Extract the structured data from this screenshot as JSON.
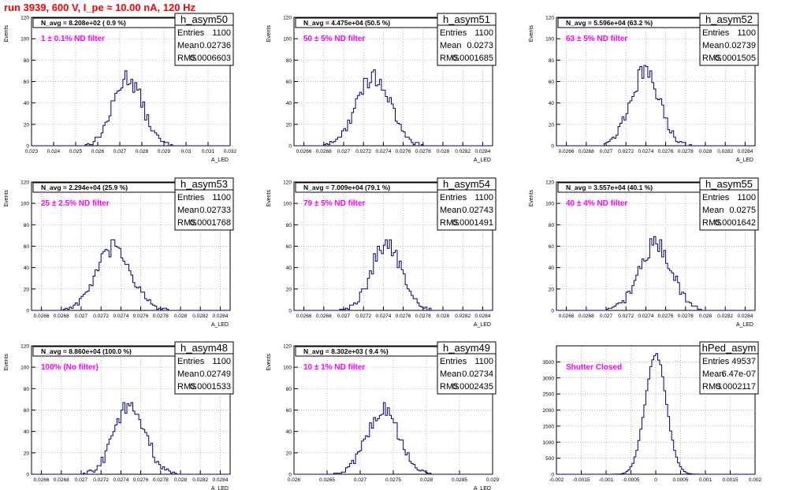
{
  "page_title": "run 3939,   600 V, I_pe ≈ 10.00 nA, 120 Hz",
  "stat_labels": {
    "entries": "Entries",
    "mean": "Mean",
    "rms": "RMS"
  },
  "chart_data": [
    {
      "type": "bar",
      "histogram": "h_asym50",
      "ylabel": "Events",
      "xlabel": "A_LED",
      "x_range": [
        0.023,
        0.032
      ],
      "y_range": [
        0,
        120
      ],
      "x_ticks": [
        "0.023",
        "0.024",
        "0.025",
        "0.026",
        "0.027",
        "0.028",
        "0.029",
        "0.03",
        "0.031",
        "0.032"
      ],
      "y_ticks": [
        "0",
        "20",
        "40",
        "60",
        "80",
        "100",
        "120"
      ],
      "n_avg_text": "N_avg = 8.208e+02 ( 0.9 %)",
      "filter_text": "1 ± 0.1% ND filter",
      "entries": "1100",
      "mean": "0.02736",
      "rms": "0.0006603",
      "mean_value": 0.02736,
      "rms_value": 0.0006603,
      "peak": 64
    },
    {
      "type": "bar",
      "histogram": "h_asym51",
      "ylabel": "Events",
      "xlabel": "A_LED",
      "x_range": [
        0.0265,
        0.0285
      ],
      "y_range": [
        0,
        120
      ],
      "x_ticks": [
        "0.0266",
        "0.0268",
        "0.027",
        "0.0272",
        "0.0274",
        "0.0276",
        "0.0278",
        "0.028",
        "0.0282",
        "0.0284"
      ],
      "y_ticks": [
        "0",
        "20",
        "40",
        "60",
        "80",
        "100",
        "120"
      ],
      "n_avg_text": "N_avg = 4.475e+04 (50.5 %)",
      "filter_text": "50 ± 5% ND filter",
      "entries": "1100",
      "mean": "0.0273",
      "rms": "0.0001685",
      "mean_value": 0.0273,
      "rms_value": 0.0001685,
      "peak": 65
    },
    {
      "type": "bar",
      "histogram": "h_asym52",
      "ylabel": "Events",
      "xlabel": "A_LED",
      "x_range": [
        0.0265,
        0.0285
      ],
      "y_range": [
        0,
        120
      ],
      "x_ticks": [
        "0.0266",
        "0.0268",
        "0.027",
        "0.0272",
        "0.0274",
        "0.0276",
        "0.0278",
        "0.028",
        "0.0282",
        "0.0284"
      ],
      "y_ticks": [
        "0",
        "20",
        "40",
        "60",
        "80",
        "100",
        "120"
      ],
      "n_avg_text": "N_avg = 5.596e+04 (63.2 %)",
      "filter_text": "63 ± 5% ND filter",
      "entries": "1100",
      "mean": "0.02739",
      "rms": "0.0001505",
      "mean_value": 0.02739,
      "rms_value": 0.0001505,
      "peak": 68
    },
    {
      "type": "bar",
      "histogram": "h_asym53",
      "ylabel": "Events",
      "xlabel": "A_LED",
      "x_range": [
        0.0265,
        0.0285
      ],
      "y_range": [
        0,
        120
      ],
      "x_ticks": [
        "0.0266",
        "0.0268",
        "0.027",
        "0.0272",
        "0.0274",
        "0.0276",
        "0.0278",
        "0.028",
        "0.0282",
        "0.0284"
      ],
      "y_ticks": [
        "0",
        "20",
        "40",
        "60",
        "80",
        "100",
        "120"
      ],
      "n_avg_text": "N_avg = 2.294e+04 (25.9 %)",
      "filter_text": "25 ± 2.5% ND filter",
      "entries": "1100",
      "mean": "0.02733",
      "rms": "0.0001768",
      "mean_value": 0.02733,
      "rms_value": 0.0001768,
      "peak": 58
    },
    {
      "type": "bar",
      "histogram": "h_asym54",
      "ylabel": "Events",
      "xlabel": "A_LED",
      "x_range": [
        0.0265,
        0.0285
      ],
      "y_range": [
        0,
        120
      ],
      "x_ticks": [
        "0.0266",
        "0.0268",
        "0.027",
        "0.0272",
        "0.0274",
        "0.0276",
        "0.0278",
        "0.028",
        "0.0282",
        "0.0284"
      ],
      "y_ticks": [
        "0",
        "20",
        "40",
        "60",
        "80",
        "100",
        "120"
      ],
      "n_avg_text": "N_avg = 7.009e+04 (79.1 %)",
      "filter_text": "79 ± 5% ND filter",
      "entries": "1100",
      "mean": "0.02743",
      "rms": "0.0001491",
      "mean_value": 0.02743,
      "rms_value": 0.0001491,
      "peak": 63
    },
    {
      "type": "bar",
      "histogram": "h_asym55",
      "ylabel": "Events",
      "xlabel": "A_LED",
      "x_range": [
        0.0265,
        0.0285
      ],
      "y_range": [
        0,
        120
      ],
      "x_ticks": [
        "0.0266",
        "0.0268",
        "0.027",
        "0.0272",
        "0.0274",
        "0.0276",
        "0.0278",
        "0.028",
        "0.0282",
        "0.0284"
      ],
      "y_ticks": [
        "0",
        "20",
        "40",
        "60",
        "80",
        "100",
        "120"
      ],
      "n_avg_text": "N_avg = 3.557e+04 (40.1 %)",
      "filter_text": "40 ± 4% ND filter",
      "entries": "1100",
      "mean": "0.0275",
      "rms": "0.0001642",
      "mean_value": 0.0275,
      "rms_value": 0.0001642,
      "peak": 62
    },
    {
      "type": "bar",
      "histogram": "h_asym48",
      "ylabel": "Events",
      "xlabel": "A_LED",
      "x_range": [
        0.0265,
        0.0285
      ],
      "y_range": [
        0,
        120
      ],
      "x_ticks": [
        "0.0266",
        "0.0268",
        "0.027",
        "0.0272",
        "0.0274",
        "0.0276",
        "0.0278",
        "0.028",
        "0.0282",
        "0.0284"
      ],
      "y_ticks": [
        "0",
        "20",
        "40",
        "60",
        "80",
        "100",
        "120"
      ],
      "n_avg_text": "N_avg = 8.860e+04 (100.0 %)",
      "filter_text": "100% (No filter)",
      "entries": "1100",
      "mean": "0.02749",
      "rms": "0.0001533",
      "mean_value": 0.02749,
      "rms_value": 0.0001533,
      "peak": 66
    },
    {
      "type": "bar",
      "histogram": "h_asym49",
      "ylabel": "Events",
      "xlabel": "A_LED",
      "x_range": [
        0.026,
        0.029
      ],
      "y_range": [
        0,
        120
      ],
      "x_ticks": [
        "0.026",
        "0.0265",
        "0.027",
        "0.0275",
        "0.028",
        "0.0285",
        "0.029"
      ],
      "y_ticks": [
        "0",
        "20",
        "40",
        "60",
        "80",
        "100",
        "120"
      ],
      "n_avg_text": "N_avg = 8.302e+03 ( 9.4 %)",
      "filter_text": "10 ± 1% ND filter",
      "entries": "1100",
      "mean": "0.02734",
      "rms": "0.0002435",
      "mean_value": 0.02734,
      "rms_value": 0.0002435,
      "peak": 60
    },
    {
      "type": "bar",
      "histogram": "hPed_asym",
      "ylabel": "",
      "xlabel": "",
      "x_range": [
        -0.002,
        0.002
      ],
      "y_range": [
        0,
        4000
      ],
      "x_ticks": [
        "-0.002",
        "-0.0015",
        "-0.001",
        "-0.0005",
        "0",
        "0.0005",
        "0.001",
        "0.0015",
        "0.002"
      ],
      "y_ticks": [
        "0",
        "500",
        "1000",
        "1500",
        "2000",
        "2500",
        "3000",
        "3500"
      ],
      "n_avg_text": "",
      "filter_text": "Shutter Closed",
      "entries": "49537",
      "mean": "6.47e-07",
      "rms": "0.0002117",
      "mean_value": 6.47e-07,
      "rms_value": 0.0002117,
      "peak": 3750
    }
  ]
}
